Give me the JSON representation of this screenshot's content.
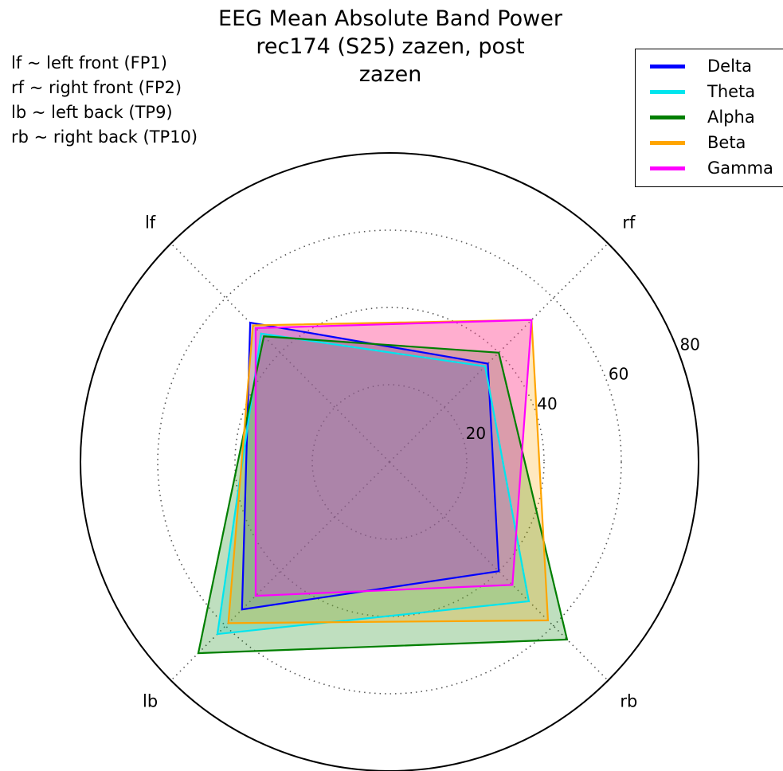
{
  "title": {
    "line1": "EEG Mean Absolute Band Power",
    "line2": "rec174 (S25) zazen, post",
    "line3": "zazen"
  },
  "notes": [
    "lf ~ left front (FP1)",
    "rf ~ right front (FP2)",
    "lb ~ left back (TP9)",
    "rb ~ right back (TP10)"
  ],
  "chart_data": {
    "type": "radar",
    "categories": [
      "lf",
      "rf",
      "rb",
      "lb"
    ],
    "rlim": [
      0,
      80
    ],
    "rticks": [
      20,
      40,
      60,
      80
    ],
    "grid": true,
    "legend_position": "top-right",
    "series": [
      {
        "name": "Delta",
        "color": "#0000ff",
        "values": [
          51,
          36,
          40,
          54
        ]
      },
      {
        "name": "Theta",
        "color": "#00e5ee",
        "values": [
          47,
          35,
          51,
          63
        ]
      },
      {
        "name": "Alpha",
        "color": "#007f00",
        "values": [
          46,
          40,
          65,
          70
        ]
      },
      {
        "name": "Beta",
        "color": "#ffa500",
        "values": [
          50,
          52,
          58,
          59
        ]
      },
      {
        "name": "Gamma",
        "color": "#ff00ff",
        "values": [
          49,
          52,
          45,
          49
        ]
      }
    ]
  }
}
